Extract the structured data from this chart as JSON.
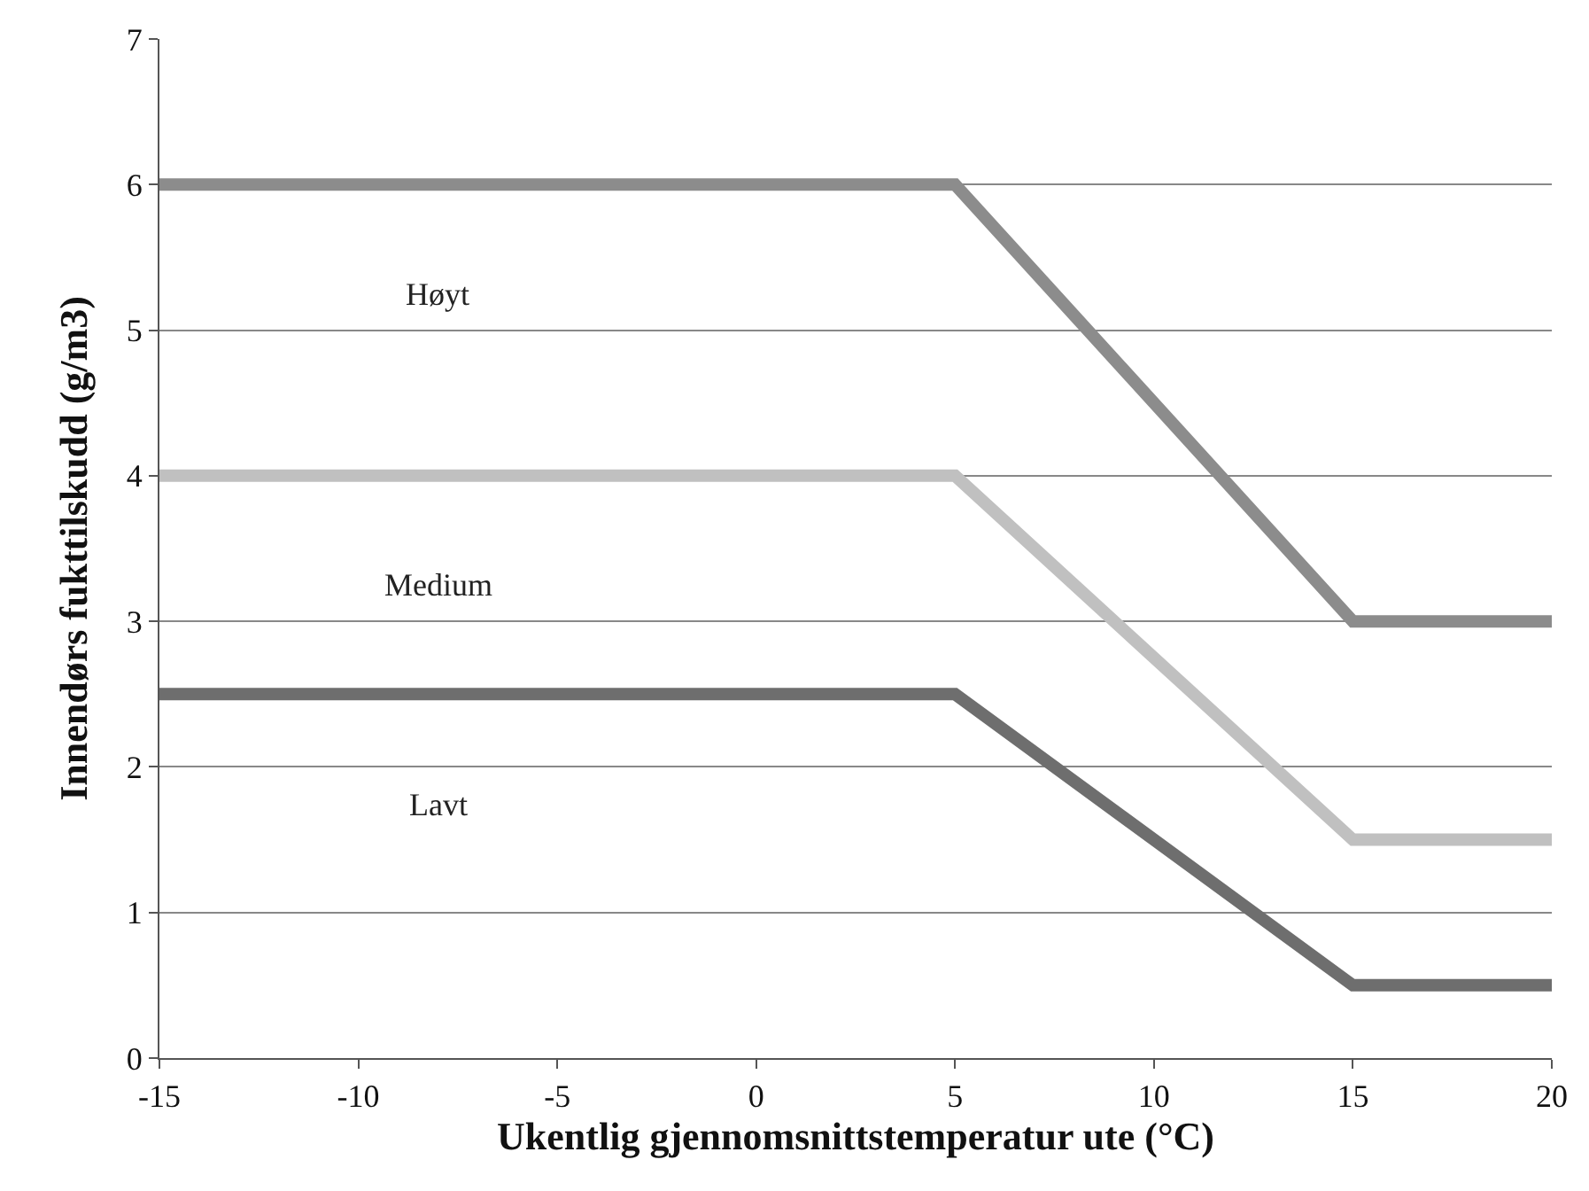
{
  "chart_data": {
    "type": "line",
    "xlabel": "Ukentlig gjennomsnittstemperatur ute (°C)",
    "ylabel": "Innendørs fukttilskudd (g/m3)",
    "x": [
      -15,
      5,
      15,
      20
    ],
    "series": [
      {
        "name": "Høyt",
        "color": "#8c8c8c",
        "values": [
          6,
          6,
          3,
          3
        ]
      },
      {
        "name": "Medium",
        "color": "#c0c0c0",
        "values": [
          4,
          4,
          1.5,
          1.5
        ]
      },
      {
        "name": "Lavt",
        "color": "#6e6e6e",
        "values": [
          2.5,
          2.5,
          0.5,
          0.5
        ]
      }
    ],
    "xlim": [
      -15,
      20
    ],
    "xticks": [
      -15,
      -10,
      -5,
      0,
      5,
      10,
      15,
      20
    ],
    "ylim": [
      0,
      7
    ],
    "yticks": [
      0,
      1,
      2,
      3,
      4,
      5,
      6,
      7
    ],
    "grid": "y",
    "legend": false,
    "line_style": "solid"
  }
}
